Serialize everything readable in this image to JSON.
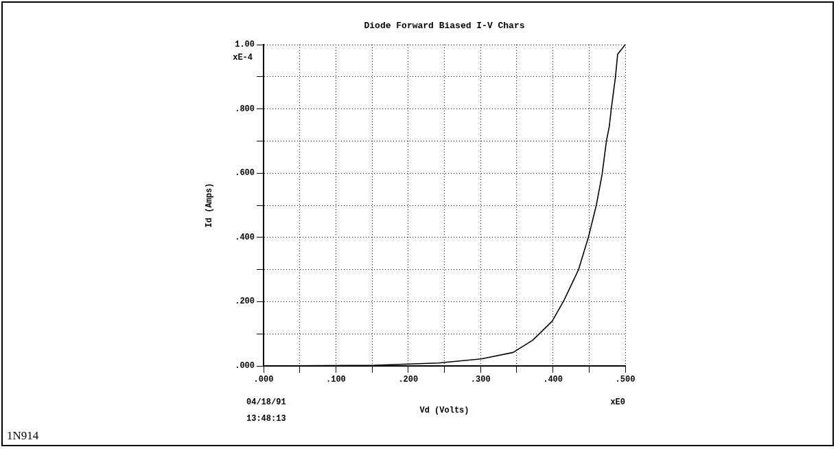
{
  "chart_data": {
    "type": "line",
    "title": "Diode Forward Biased I-V Chars",
    "xlabel": "Vd (Volts)",
    "ylabel": "Id (Amps)",
    "annotations": [
      "xE-4",
      "xE0",
      "04/18/91",
      "13:48:13",
      "1N914"
    ],
    "series": [
      {
        "color": "#000000",
        "x": [
          0,
          0.153,
          0.2416,
          0.301,
          0.345,
          0.372,
          0.399,
          0.4155,
          0.4355,
          0.449,
          0.46,
          0.468,
          0.474,
          0.478,
          0.4807,
          0.4865,
          0.4895,
          0.5
        ],
        "values": [
          0,
          0.002,
          0.009,
          0.022,
          0.042,
          0.08,
          0.139,
          0.205,
          0.3,
          0.4,
          0.5,
          0.596,
          0.7,
          0.746,
          0.8,
          0.9,
          0.97,
          1.0
        ]
      }
    ],
    "xlim": [
      0,
      0.5
    ],
    "xticks": [
      {
        "value": 0,
        "label": ".000"
      },
      {
        "value": 0.05,
        "label": null
      },
      {
        "value": 0.1,
        "label": ".100"
      },
      {
        "value": 0.15,
        "label": null
      },
      {
        "value": 0.2,
        "label": ".200"
      },
      {
        "value": 0.25,
        "label": null
      },
      {
        "value": 0.3,
        "label": ".300"
      },
      {
        "value": 0.35,
        "label": null
      },
      {
        "value": 0.4,
        "label": ".400"
      },
      {
        "value": 0.45,
        "label": null
      },
      {
        "value": 0.5,
        "label": ".500"
      }
    ],
    "ylim": [
      0,
      1
    ],
    "yticks": [
      {
        "value": 0,
        "label": ".000"
      },
      {
        "value": 0.1,
        "label": null
      },
      {
        "value": 0.2,
        "label": ".200"
      },
      {
        "value": 0.3,
        "label": null
      },
      {
        "value": 0.4,
        "label": ".400"
      },
      {
        "value": 0.5,
        "label": null
      },
      {
        "value": 0.6,
        "label": ".600"
      },
      {
        "value": 0.7,
        "label": null
      },
      {
        "value": 0.8,
        "label": ".800"
      },
      {
        "value": 0.9,
        "label": null
      },
      {
        "value": 1,
        "label": "1.00"
      }
    ],
    "grid": true,
    "legend": false,
    "marker": "none",
    "line_style": "solid"
  }
}
